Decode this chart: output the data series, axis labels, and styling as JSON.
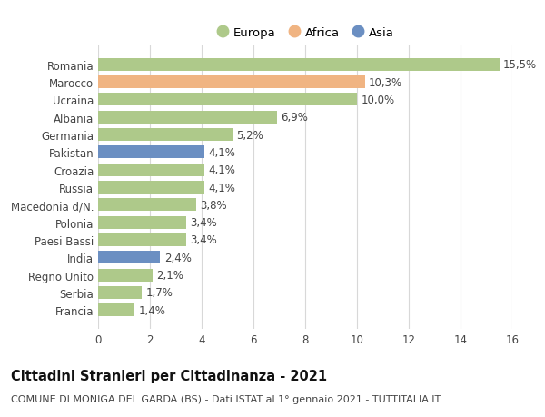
{
  "categories": [
    "Francia",
    "Serbia",
    "Regno Unito",
    "India",
    "Paesi Bassi",
    "Polonia",
    "Macedonia d/N.",
    "Russia",
    "Croazia",
    "Pakistan",
    "Germania",
    "Albania",
    "Ucraina",
    "Marocco",
    "Romania"
  ],
  "values": [
    1.4,
    1.7,
    2.1,
    2.4,
    3.4,
    3.4,
    3.8,
    4.1,
    4.1,
    4.1,
    5.2,
    6.9,
    10.0,
    10.3,
    15.5
  ],
  "labels": [
    "1,4%",
    "1,7%",
    "2,1%",
    "2,4%",
    "3,4%",
    "3,4%",
    "3,8%",
    "4,1%",
    "4,1%",
    "4,1%",
    "5,2%",
    "6,9%",
    "10,0%",
    "10,3%",
    "15,5%"
  ],
  "continents": [
    "Europa",
    "Europa",
    "Europa",
    "Asia",
    "Europa",
    "Europa",
    "Europa",
    "Europa",
    "Europa",
    "Asia",
    "Europa",
    "Europa",
    "Europa",
    "Africa",
    "Europa"
  ],
  "colors": {
    "Europa": "#aec98a",
    "Africa": "#f0b482",
    "Asia": "#6b8fc2"
  },
  "legend_labels": [
    "Europa",
    "Africa",
    "Asia"
  ],
  "legend_colors": [
    "#aec98a",
    "#f0b482",
    "#6b8fc2"
  ],
  "title": "Cittadini Stranieri per Cittadinanza - 2021",
  "subtitle": "COMUNE DI MONIGA DEL GARDA (BS) - Dati ISTAT al 1° gennaio 2021 - TUTTITALIA.IT",
  "xlim": [
    0,
    16
  ],
  "xticks": [
    0,
    2,
    4,
    6,
    8,
    10,
    12,
    14,
    16
  ],
  "background_color": "#ffffff",
  "grid_color": "#d8d8d8",
  "bar_height": 0.72,
  "label_fontsize": 8.5,
  "tick_fontsize": 8.5,
  "title_fontsize": 10.5,
  "subtitle_fontsize": 8.0
}
